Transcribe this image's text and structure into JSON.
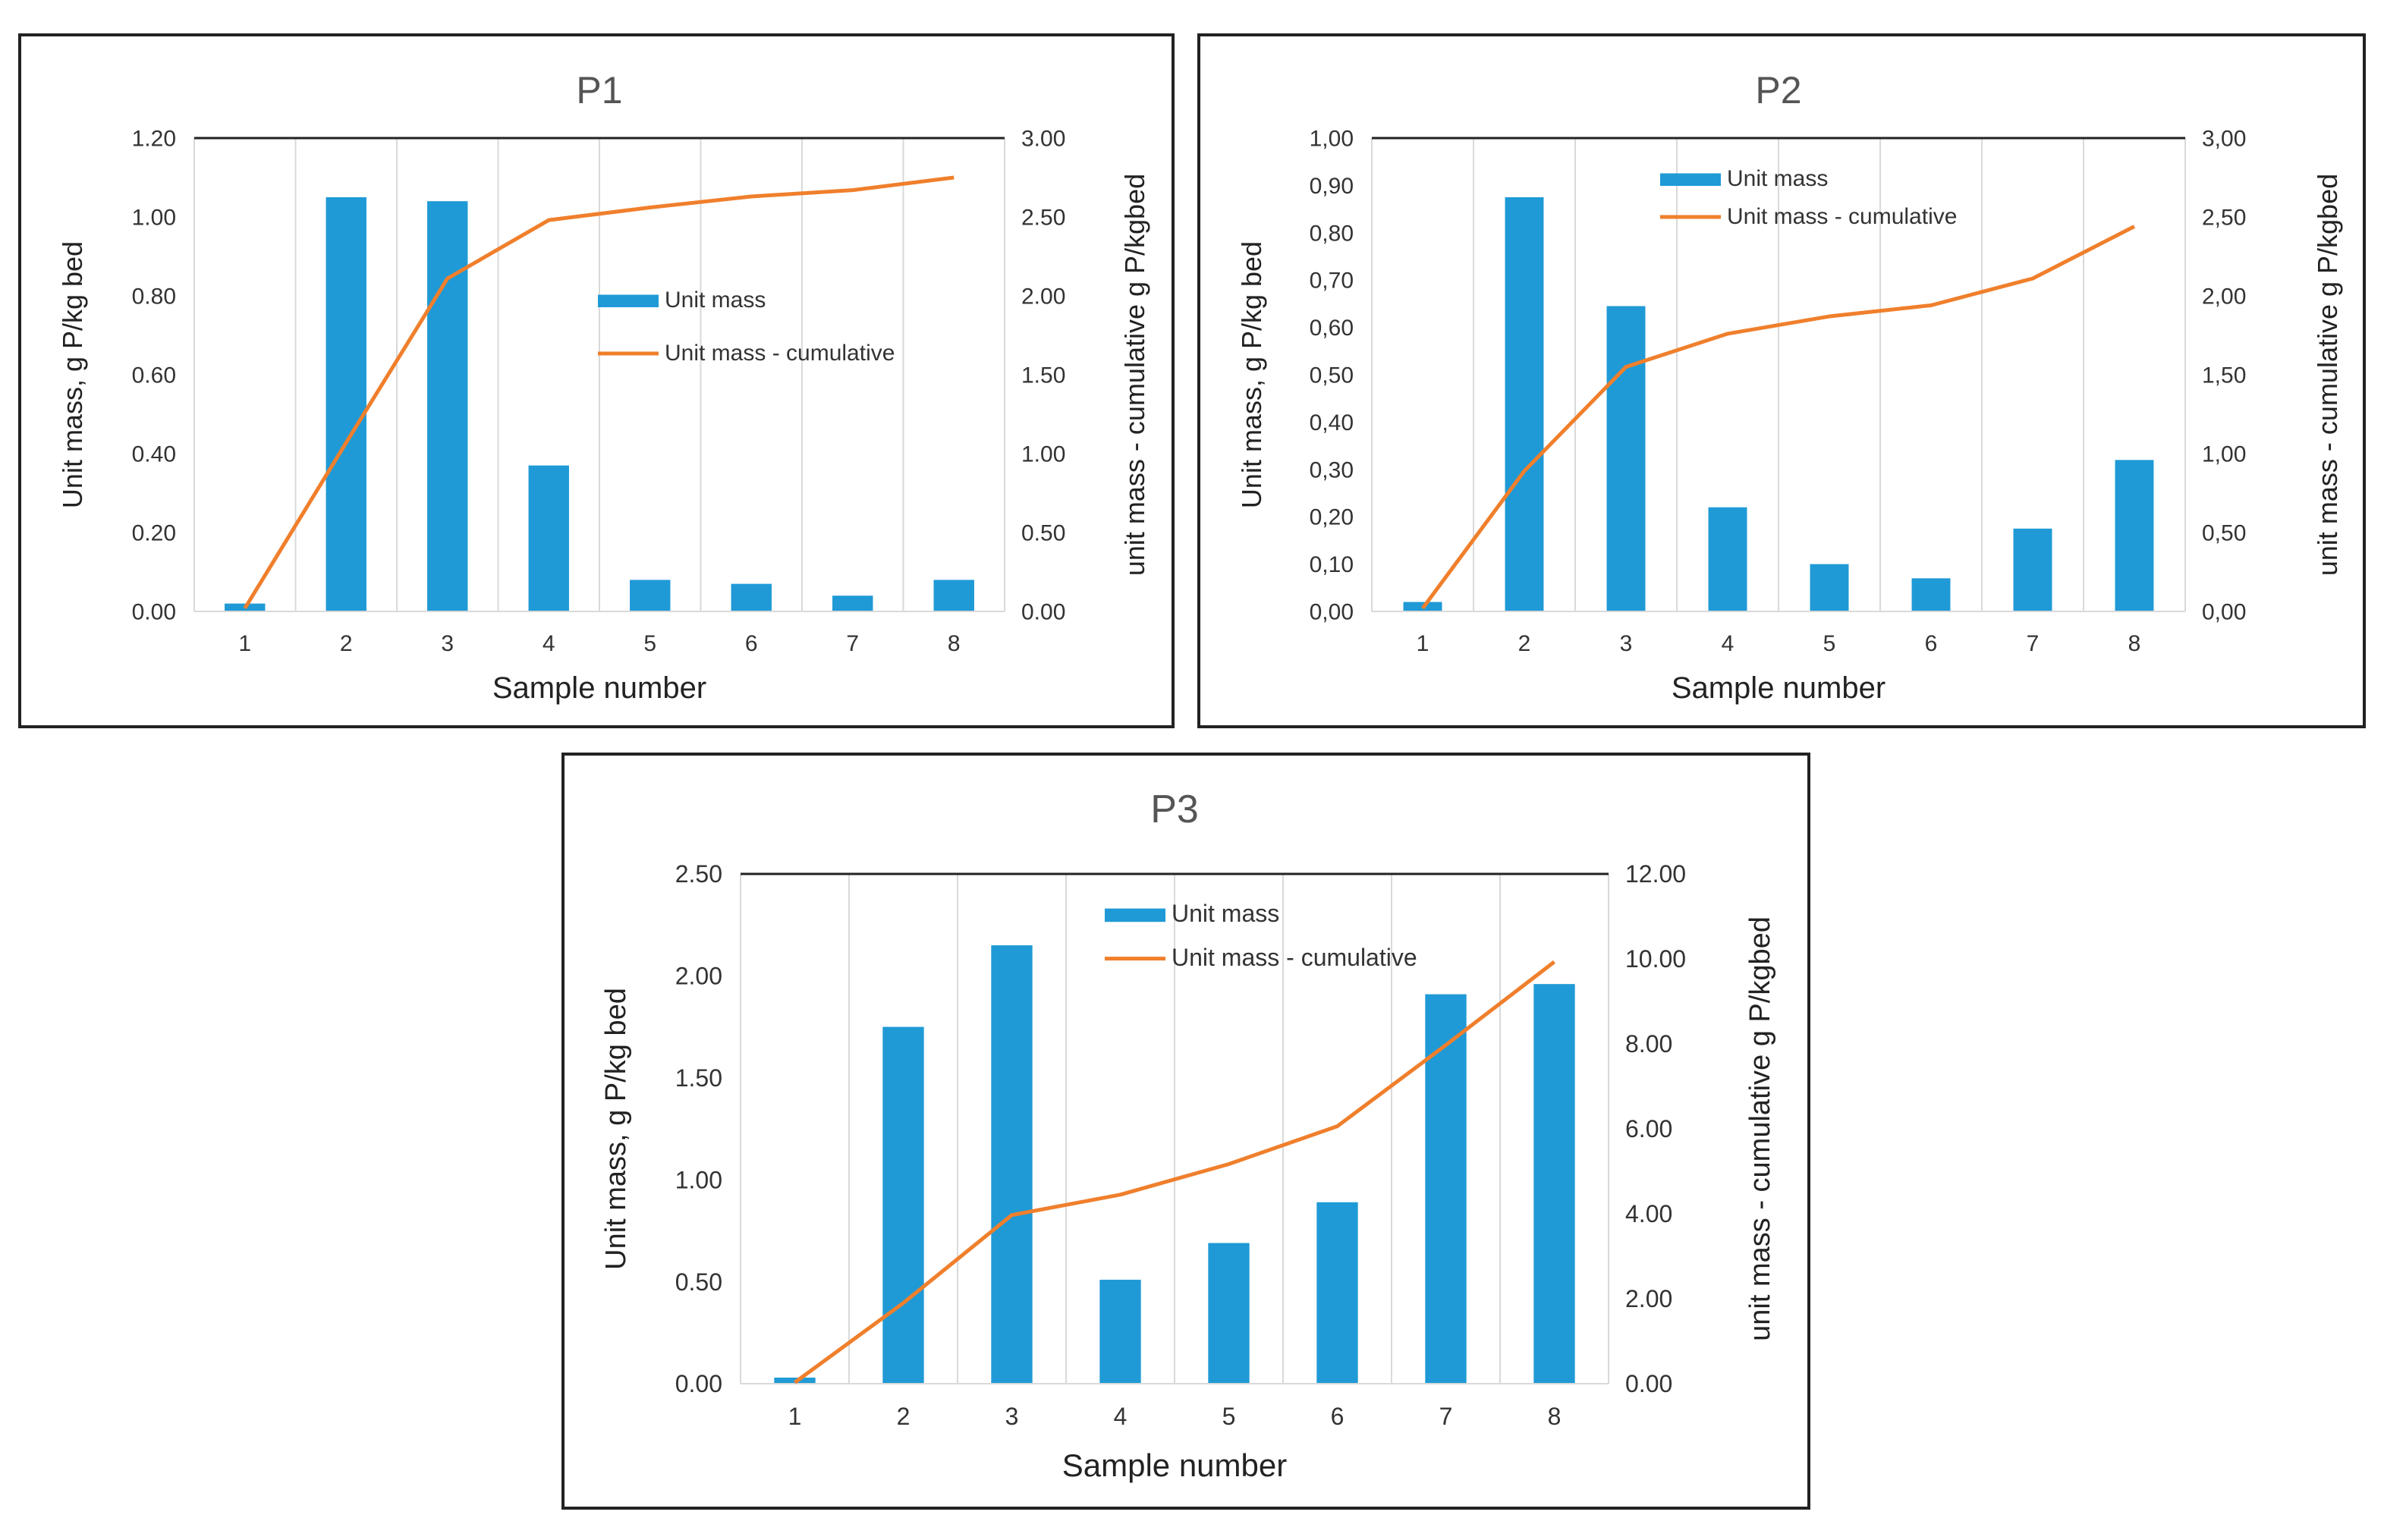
{
  "chart_data": [
    {
      "type": "bar",
      "title": "P1",
      "xlabel": "Sample number",
      "ylabel": "Unit mass, g P/kg bed",
      "y2label": "unit mass - cumulative g P/kgbed",
      "categories": [
        "1",
        "2",
        "3",
        "4",
        "5",
        "6",
        "7",
        "8"
      ],
      "ylim": [
        0,
        1.2
      ],
      "y2lim": [
        0,
        3.0
      ],
      "yticks": [
        "0.00",
        "0.20",
        "0.40",
        "0.60",
        "0.80",
        "1.00",
        "1.20"
      ],
      "y2ticks": [
        "0.00",
        "0.50",
        "1.00",
        "1.50",
        "2.00",
        "2.50",
        "3.00"
      ],
      "series": [
        {
          "name": "Unit mass",
          "kind": "bar",
          "axis": "left",
          "color": "#1f9ad6",
          "values": [
            0.02,
            1.05,
            1.04,
            0.37,
            0.08,
            0.07,
            0.04,
            0.08
          ]
        },
        {
          "name": "Unit mass - cumulative",
          "kind": "line",
          "axis": "right",
          "color": "#f07f2c",
          "values": [
            0.02,
            1.07,
            2.11,
            2.48,
            2.56,
            2.63,
            2.67,
            2.75
          ]
        }
      ],
      "legend": "center"
    },
    {
      "type": "bar",
      "title": "P2",
      "xlabel": "Sample number",
      "ylabel": "Unit mass, g P/kg bed",
      "y2label": "unit mass - cumulative g P/kgbed",
      "categories": [
        "1",
        "2",
        "3",
        "4",
        "5",
        "6",
        "7",
        "8"
      ],
      "ylim": [
        0,
        1.0
      ],
      "y2lim": [
        0,
        3.0
      ],
      "yticks": [
        "0,00",
        "0,10",
        "0,20",
        "0,30",
        "0,40",
        "0,50",
        "0,60",
        "0,70",
        "0,80",
        "0,90",
        "1,00"
      ],
      "y2ticks": [
        "0,00",
        "0,50",
        "1,00",
        "1,50",
        "2,00",
        "2,50",
        "3,00"
      ],
      "series": [
        {
          "name": "Unit mass",
          "kind": "bar",
          "axis": "left",
          "color": "#1f9ad6",
          "values": [
            0.02,
            0.875,
            0.645,
            0.22,
            0.1,
            0.07,
            0.175,
            0.32
          ]
        },
        {
          "name": "Unit mass - cumulative",
          "kind": "line",
          "axis": "right",
          "color": "#f07f2c",
          "values": [
            0.02,
            0.89,
            1.55,
            1.76,
            1.87,
            1.94,
            2.11,
            2.44
          ]
        }
      ],
      "legend": "top-center"
    },
    {
      "type": "bar",
      "title": "P3",
      "xlabel": "Sample number",
      "ylabel": "Unit mass, g P/kg bed",
      "y2label": "unit mass - cumulative g P/kgbed",
      "categories": [
        "1",
        "2",
        "3",
        "4",
        "5",
        "6",
        "7",
        "8"
      ],
      "ylim": [
        0,
        2.5
      ],
      "y2lim": [
        0,
        12.0
      ],
      "yticks": [
        "0.00",
        "0.50",
        "1.00",
        "1.50",
        "2.00",
        "2.50"
      ],
      "y2ticks": [
        "0.00",
        "2.00",
        "4.00",
        "6.00",
        "8.00",
        "10.00",
        "12.00"
      ],
      "series": [
        {
          "name": "Unit mass",
          "kind": "bar",
          "axis": "left",
          "color": "#1f9ad6",
          "values": [
            0.03,
            1.75,
            2.15,
            0.51,
            0.69,
            0.89,
            1.91,
            1.96
          ]
        },
        {
          "name": "Unit mass - cumulative",
          "kind": "line",
          "axis": "right",
          "color": "#f07f2c",
          "values": [
            0.03,
            1.9,
            3.97,
            4.45,
            5.17,
            6.06,
            7.97,
            9.93
          ]
        }
      ],
      "legend": "top-center"
    }
  ]
}
